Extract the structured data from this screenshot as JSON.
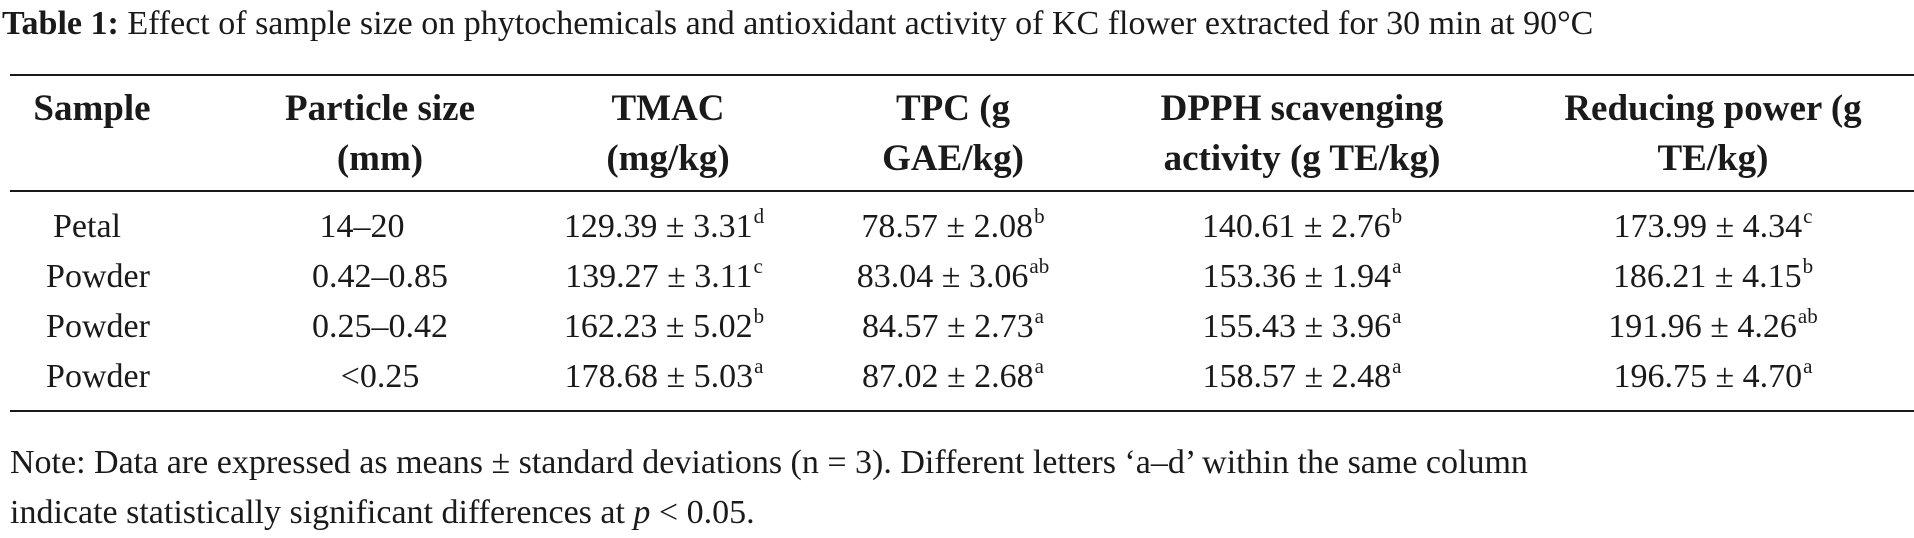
{
  "caption": {
    "label": "Table 1:",
    "text": "Effect of sample size on phytochemicals and antioxidant activity of KC flower extracted for 30 min at 90°C"
  },
  "table": {
    "headers": [
      {
        "line1": "Sample",
        "line2": ""
      },
      {
        "line1": "Particle size",
        "line2": "(mm)"
      },
      {
        "line1": "TMAC",
        "line2": "(mg/kg)"
      },
      {
        "line1": "TPC (g",
        "line2": "GAE/kg)"
      },
      {
        "line1": "DPPH scavenging",
        "line2": "activity (g TE/kg)"
      },
      {
        "line1": "Reducing power (g",
        "line2": "TE/kg)"
      }
    ],
    "rows": [
      {
        "sample": "Petal",
        "size": "14–20",
        "tmac": {
          "v": "129.39 ± 3.31",
          "s": "d"
        },
        "tpc": {
          "v": "78.57 ± 2.08",
          "s": "b"
        },
        "dpph": {
          "v": "140.61 ± 2.76",
          "s": "b"
        },
        "rp": {
          "v": "173.99 ± 4.34",
          "s": "c"
        }
      },
      {
        "sample": "Powder",
        "size": "0.42–0.85",
        "tmac": {
          "v": "139.27 ± 3.11",
          "s": "c"
        },
        "tpc": {
          "v": "83.04 ± 3.06",
          "s": "ab"
        },
        "dpph": {
          "v": "153.36 ± 1.94",
          "s": "a"
        },
        "rp": {
          "v": "186.21 ± 4.15",
          "s": "b"
        }
      },
      {
        "sample": "Powder",
        "size": "0.25–0.42",
        "tmac": {
          "v": "162.23 ± 5.02",
          "s": "b"
        },
        "tpc": {
          "v": "84.57 ± 2.73",
          "s": "a"
        },
        "dpph": {
          "v": "155.43 ± 3.96",
          "s": "a"
        },
        "rp": {
          "v": "191.96 ± 4.26",
          "s": "ab"
        }
      },
      {
        "sample": "Powder",
        "size": "<0.25",
        "tmac": {
          "v": "178.68 ± 5.03",
          "s": "a"
        },
        "tpc": {
          "v": "87.02 ± 2.68",
          "s": "a"
        },
        "dpph": {
          "v": "158.57 ± 2.48",
          "s": "a"
        },
        "rp": {
          "v": "196.75 ± 4.70",
          "s": "a"
        }
      }
    ]
  },
  "note": {
    "line1": "Note: Data are expressed as means ± standard deviations (n = 3). Different letters ‘a–d’ within the same column",
    "line2_pre": "indicate statistically significant differences at ",
    "line2_p": "p",
    "line2_post": " < 0.05."
  }
}
